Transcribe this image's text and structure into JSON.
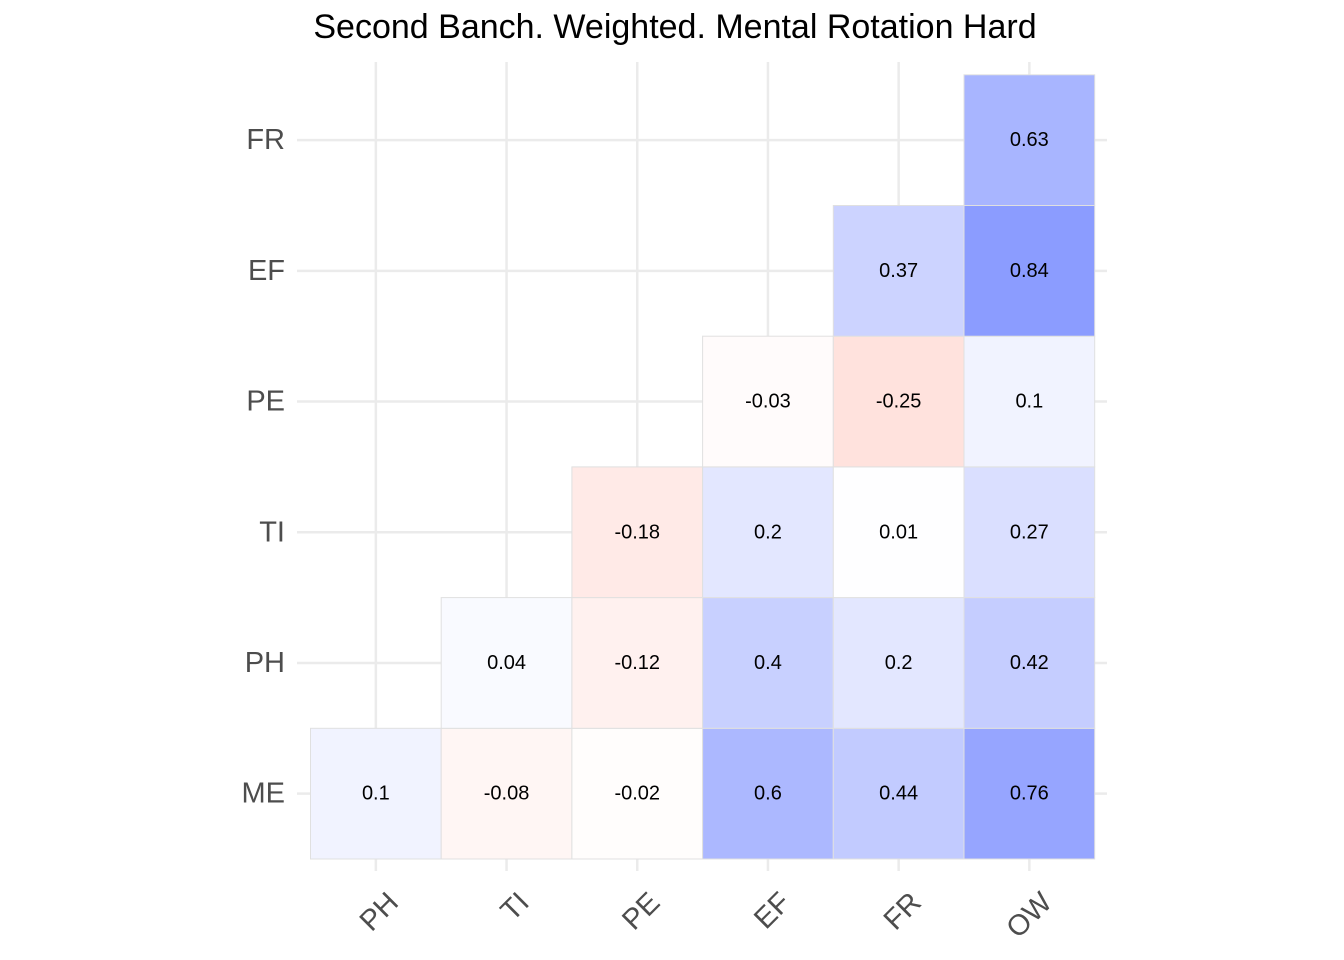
{
  "chart_data": {
    "type": "heatmap",
    "title": "Second Banch. Weighted. Mental Rotation Hard",
    "xlabel": "",
    "ylabel": "",
    "x_categories": [
      "PH",
      "TI",
      "PE",
      "EF",
      "FR",
      "OW"
    ],
    "y_categories": [
      "ME",
      "PH",
      "TI",
      "PE",
      "EF",
      "FR"
    ],
    "grid": true,
    "cells": [
      {
        "x": "PH",
        "y": "ME",
        "value": 0.1,
        "label": "0.1"
      },
      {
        "x": "TI",
        "y": "ME",
        "value": -0.08,
        "label": "-0.08"
      },
      {
        "x": "PE",
        "y": "ME",
        "value": -0.02,
        "label": "-0.02"
      },
      {
        "x": "EF",
        "y": "ME",
        "value": 0.6,
        "label": "0.6"
      },
      {
        "x": "FR",
        "y": "ME",
        "value": 0.44,
        "label": "0.44"
      },
      {
        "x": "OW",
        "y": "ME",
        "value": 0.76,
        "label": "0.76"
      },
      {
        "x": "TI",
        "y": "PH",
        "value": 0.04,
        "label": "0.04"
      },
      {
        "x": "PE",
        "y": "PH",
        "value": -0.12,
        "label": "-0.12"
      },
      {
        "x": "EF",
        "y": "PH",
        "value": 0.4,
        "label": "0.4"
      },
      {
        "x": "FR",
        "y": "PH",
        "value": 0.2,
        "label": "0.2"
      },
      {
        "x": "OW",
        "y": "PH",
        "value": 0.42,
        "label": "0.42"
      },
      {
        "x": "PE",
        "y": "TI",
        "value": -0.18,
        "label": "-0.18"
      },
      {
        "x": "EF",
        "y": "TI",
        "value": 0.2,
        "label": "0.2"
      },
      {
        "x": "FR",
        "y": "TI",
        "value": 0.01,
        "label": "0.01"
      },
      {
        "x": "OW",
        "y": "TI",
        "value": 0.27,
        "label": "0.27"
      },
      {
        "x": "EF",
        "y": "PE",
        "value": -0.03,
        "label": "-0.03"
      },
      {
        "x": "FR",
        "y": "PE",
        "value": -0.25,
        "label": "-0.25"
      },
      {
        "x": "OW",
        "y": "PE",
        "value": 0.1,
        "label": "0.1"
      },
      {
        "x": "FR",
        "y": "EF",
        "value": 0.37,
        "label": "0.37"
      },
      {
        "x": "OW",
        "y": "EF",
        "value": 0.84,
        "label": "0.84"
      },
      {
        "x": "OW",
        "y": "FR",
        "value": 0.63,
        "label": "0.63"
      }
    ],
    "colors": {
      "positive": "#7589ff",
      "negative": "#ff8a78",
      "neutral": "#ffffff",
      "grid": "#ebebeb",
      "cell_border": "#e0e0e0"
    }
  }
}
